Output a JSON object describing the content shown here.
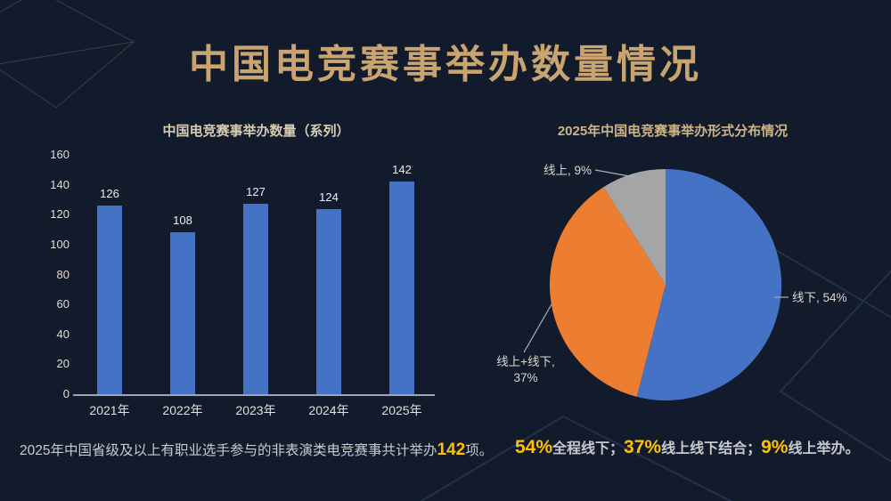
{
  "page": {
    "title": "中国电竞赛事举办数量情况",
    "colors": {
      "background": "#121B2C",
      "title": "#C9A470",
      "highlight": "#FFC000",
      "bar": "#4472C4",
      "axis": "#9FA6AE"
    }
  },
  "chart_data": [
    {
      "type": "bar",
      "title": "中国电竞赛事举办数量（系列）",
      "categories": [
        "2021年",
        "2022年",
        "2023年",
        "2024年",
        "2025年"
      ],
      "values": [
        126,
        108,
        127,
        124,
        142
      ],
      "xlabel": "",
      "ylabel": "",
      "ylim": [
        0,
        160
      ],
      "ytick_step": 20,
      "grid": false,
      "value_labels": true,
      "bar_color": "#4472C4"
    },
    {
      "type": "pie",
      "title": "2025年中国电竞赛事举办形式分布情况",
      "slices": [
        {
          "name": "线下",
          "value": 54,
          "color": "#4472C4",
          "label": "线下, 54%"
        },
        {
          "name": "线上+线下",
          "value": 37,
          "color": "#ED7D31",
          "label": "线上+线下, 37%"
        },
        {
          "name": "线上",
          "value": 9,
          "color": "#A5A5A5",
          "label": "线上, 9%"
        }
      ],
      "start_angle": "top",
      "direction": "clockwise",
      "legend": "none"
    }
  ],
  "footnotes": {
    "left": {
      "prefix": "2025年中国省级及以上有职业选手参与的非表演类电竞赛事共计举办",
      "highlight": "142",
      "suffix": "项。"
    },
    "right": {
      "segments": [
        {
          "highlight": "54%",
          "text": "全程线下；"
        },
        {
          "highlight": "37%",
          "text": "线上线下结合；"
        },
        {
          "highlight": "9%",
          "text": "线上举办。"
        }
      ]
    }
  }
}
